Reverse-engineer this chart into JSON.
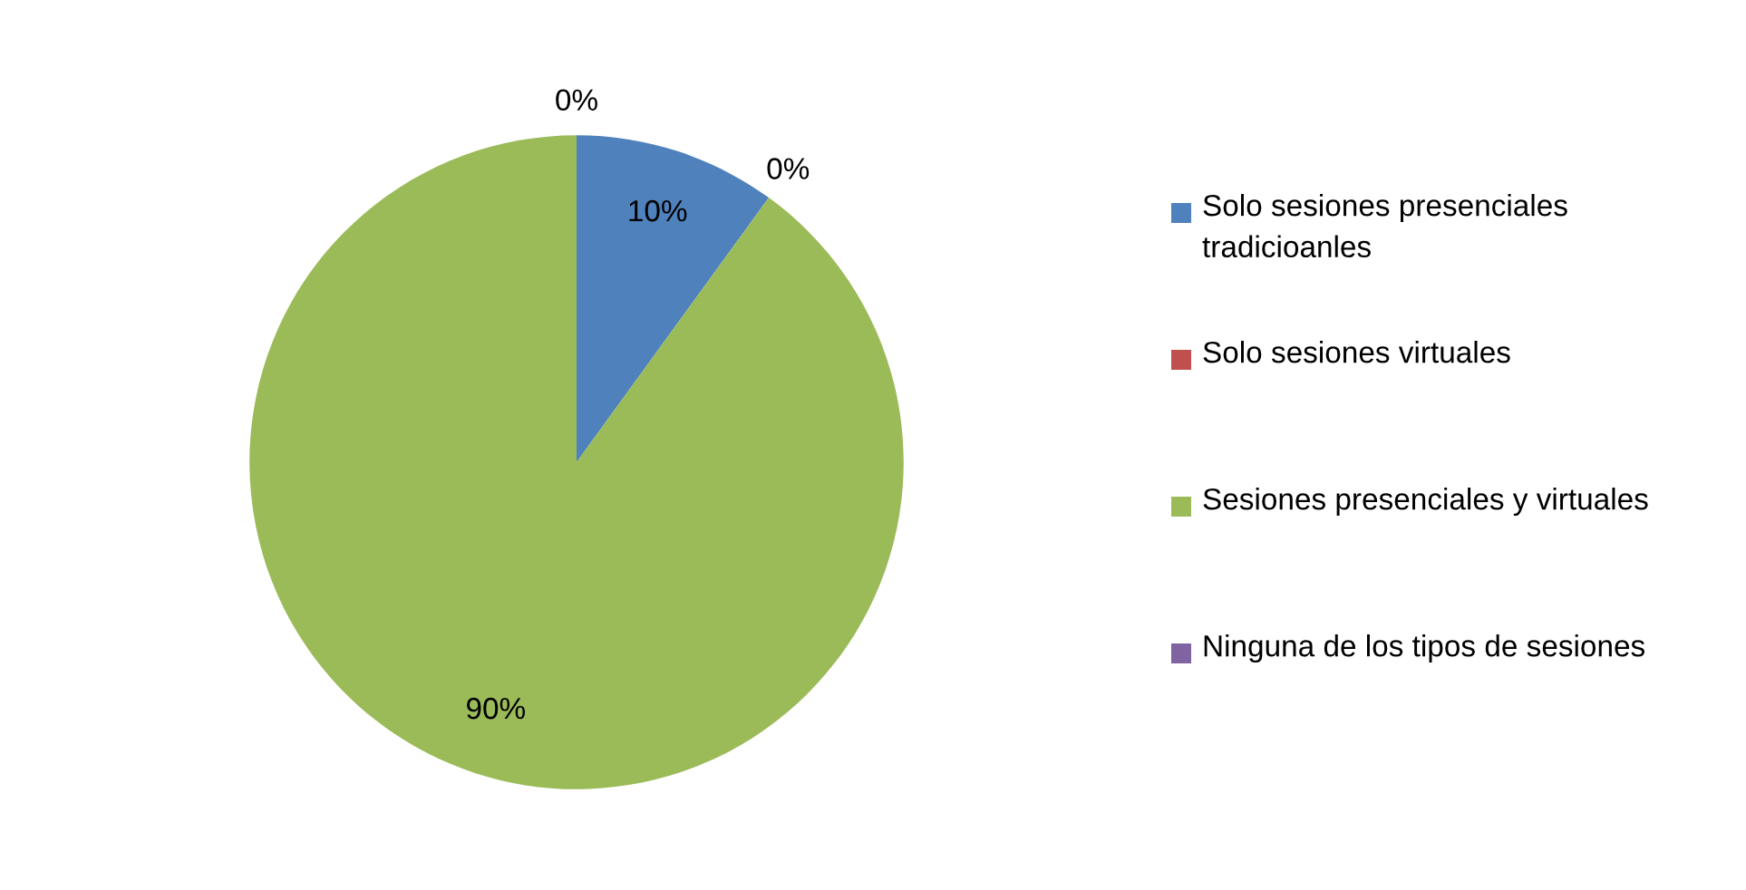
{
  "chart_data": {
    "type": "pie",
    "categories": [
      "Solo sesiones presenciales tradicioanles",
      "Solo sesiones virtuales",
      "Sesiones presenciales y virtuales",
      "Ninguna de los tipos de sesiones"
    ],
    "values": [
      10,
      0,
      90,
      0
    ],
    "value_labels": [
      "10%",
      "0%",
      "90%",
      "0%"
    ],
    "colors": [
      "#4f81bd",
      "#c0504d",
      "#9bbb59",
      "#8064a2"
    ],
    "legend": "right"
  }
}
